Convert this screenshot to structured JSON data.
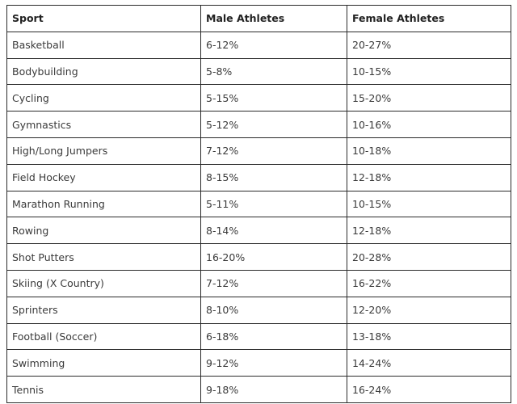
{
  "table": {
    "headers": [
      "Sport",
      "Male Athletes",
      "Female Athletes"
    ],
    "rows": [
      [
        "Basketball",
        "6-12%",
        "20-27%"
      ],
      [
        "Bodybuilding",
        "5-8%",
        "10-15%"
      ],
      [
        "Cycling",
        "5-15%",
        "15-20%"
      ],
      [
        "Gymnastics",
        "5-12%",
        "10-16%"
      ],
      [
        "High/Long Jumpers",
        "7-12%",
        "10-18%"
      ],
      [
        "Field Hockey",
        "8-15%",
        "12-18%"
      ],
      [
        "Marathon Running",
        "5-11%",
        "10-15%"
      ],
      [
        "Rowing",
        "8-14%",
        "12-18%"
      ],
      [
        "Shot Putters",
        "16-20%",
        "20-28%"
      ],
      [
        "Skiing (X Country)",
        "7-12%",
        "16-22%"
      ],
      [
        "Sprinters",
        "8-10%",
        "12-20%"
      ],
      [
        "Football (Soccer)",
        "6-18%",
        "13-18%"
      ],
      [
        "Swimming",
        "9-12%",
        "14-24%"
      ],
      [
        "Tennis",
        "9-18%",
        "16-24%"
      ]
    ]
  }
}
